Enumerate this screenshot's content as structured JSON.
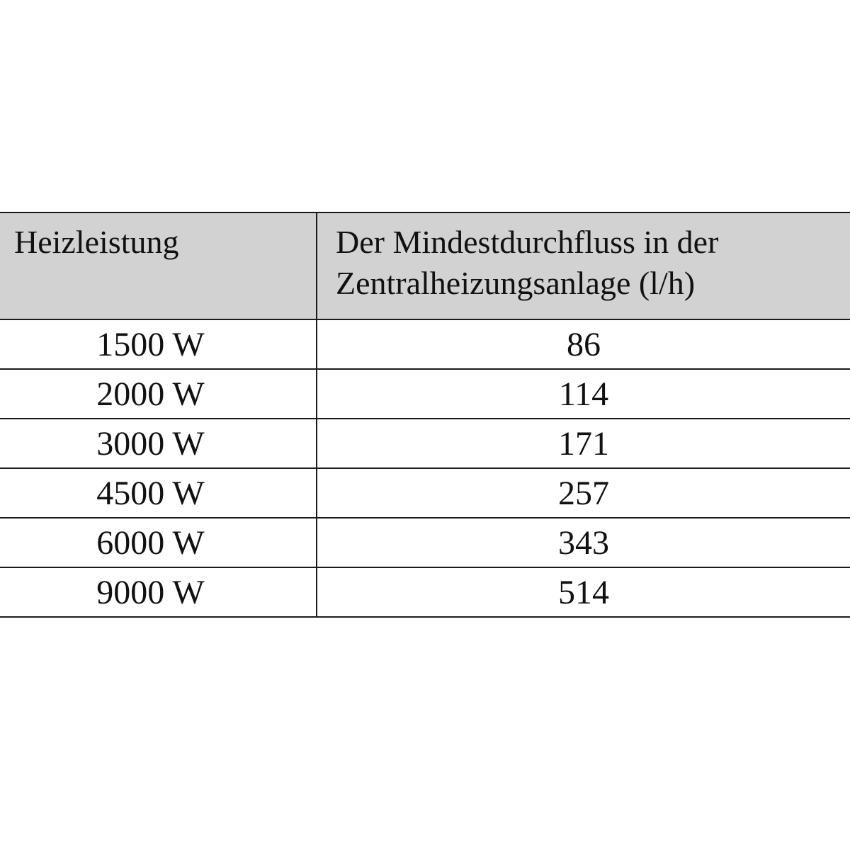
{
  "table": {
    "headers": [
      "Heizleistung",
      "Der Mindestdurchfluss in der Zentralheizungsanlage (l/h)"
    ],
    "rows": [
      [
        "1500 W",
        "86"
      ],
      [
        "2000 W",
        "114"
      ],
      [
        "3000 W",
        "171"
      ],
      [
        "4500 W",
        "257"
      ],
      [
        "6000 W",
        "343"
      ],
      [
        "9000 W",
        "514"
      ]
    ],
    "header_background": "#d2d2d2"
  }
}
